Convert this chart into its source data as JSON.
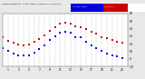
{
  "title_left": "Milwaukee Weather - Outdoor Temperature",
  "title_right": "vs Wind Chill (24 Hours)",
  "bg_color": "#e8e8e8",
  "plot_bg": "#ffffff",
  "grid_color": "#888888",
  "temp_color": "#cc0000",
  "chill_color": "#0000dd",
  "legend_temp_color": "#0000dd",
  "legend_chill_color": "#cc0000",
  "ylim": [
    -10,
    60
  ],
  "xlim": [
    0,
    24
  ],
  "ytick_vals": [
    -10,
    0,
    10,
    20,
    30,
    40,
    50,
    60
  ],
  "ytick_labels": [
    "-10",
    "0",
    "10",
    "20",
    "30",
    "40",
    "50",
    "60"
  ],
  "xtick_vals": [
    1,
    3,
    5,
    7,
    9,
    11,
    13,
    15,
    17,
    19,
    21,
    23
  ],
  "xtick_labels": [
    "1",
    "3",
    "5",
    "7",
    "9",
    "11",
    "13",
    "15",
    "17",
    "19",
    "21",
    "23"
  ],
  "grid_x": [
    1,
    2,
    3,
    4,
    5,
    6,
    7,
    8,
    9,
    10,
    11,
    12,
    13,
    14,
    15,
    16,
    17,
    18,
    19,
    20,
    21,
    22,
    23
  ],
  "temp_x": [
    0,
    1,
    2,
    3,
    4,
    5,
    6,
    7,
    8,
    9,
    10,
    11,
    12,
    13,
    14,
    15,
    16,
    17,
    18,
    19,
    20,
    21,
    22,
    23
  ],
  "temp_y": [
    28,
    24,
    21,
    19,
    18,
    19,
    22,
    26,
    31,
    37,
    42,
    46,
    48,
    46,
    43,
    42,
    39,
    36,
    33,
    29,
    27,
    25,
    23,
    21
  ],
  "chill_x": [
    0,
    1,
    2,
    3,
    4,
    5,
    6,
    7,
    8,
    9,
    10,
    11,
    12,
    13,
    14,
    15,
    16,
    17,
    18,
    19,
    20,
    21,
    22,
    23
  ],
  "chill_y": [
    14,
    10,
    7,
    5,
    4,
    5,
    8,
    13,
    18,
    25,
    30,
    34,
    36,
    34,
    29,
    28,
    22,
    18,
    14,
    10,
    7,
    5,
    3,
    1
  ]
}
